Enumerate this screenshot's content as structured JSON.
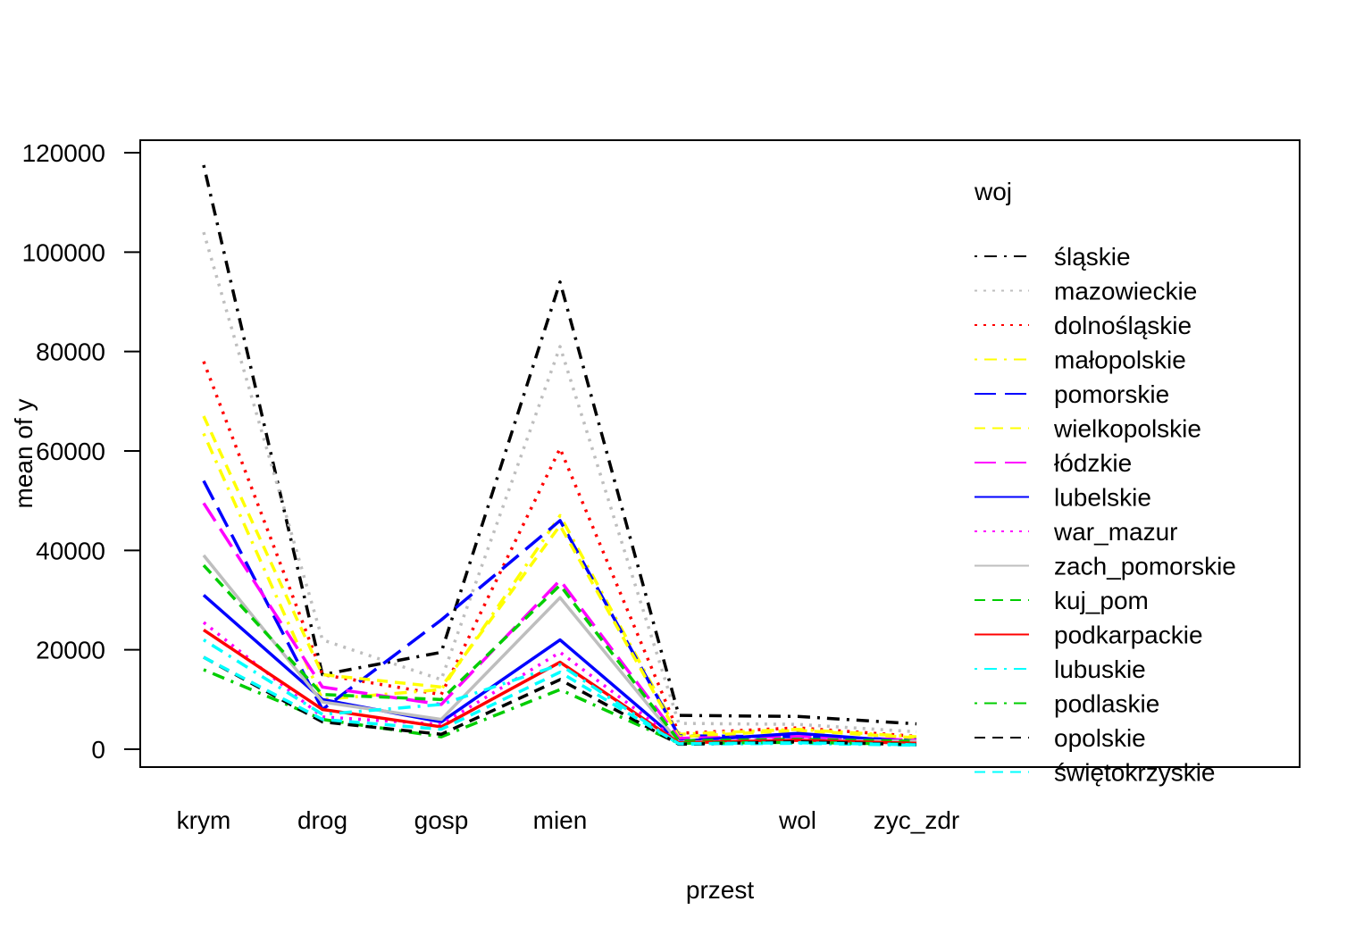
{
  "chart_data": {
    "type": "line",
    "xlabel": "przest",
    "ylabel": "mean of  y",
    "x_categories": [
      "krym",
      "drog",
      "gosp",
      "mien",
      "",
      "wol",
      "zyc_zdr"
    ],
    "x_ticks_shown": [
      "krym",
      "drog",
      "gosp",
      "mien",
      "wol",
      "zyc_zdr"
    ],
    "y_ticks": [
      0,
      20000,
      40000,
      60000,
      80000,
      100000,
      120000
    ],
    "ylim": [
      -3500,
      122500
    ],
    "legend_title": "woj",
    "legend_position": "right",
    "series": [
      {
        "name": "śląskie",
        "color": "#000000",
        "dash": "dotdash",
        "values": [
          117500,
          15000,
          19500,
          94000,
          6800,
          6600,
          5100
        ]
      },
      {
        "name": "mazowieckie",
        "color": "#bebebe",
        "dash": "dotted",
        "values": [
          104000,
          22000,
          14000,
          81000,
          5200,
          5000,
          3500
        ]
      },
      {
        "name": "dolnośląskie",
        "color": "#ff0000",
        "dash": "dotted",
        "values": [
          78000,
          15000,
          11000,
          60500,
          3200,
          4300,
          2600
        ]
      },
      {
        "name": "małopolskie",
        "color": "#ffff00",
        "dash": "dotdash",
        "values": [
          63500,
          10000,
          12000,
          47000,
          3000,
          4000,
          2500
        ]
      },
      {
        "name": "pomorskie",
        "color": "#0000ff",
        "dash": "longdash",
        "values": [
          54000,
          8000,
          26000,
          46000,
          2700,
          2500,
          1900
        ]
      },
      {
        "name": "wielkopolskie",
        "color": "#ffff00",
        "dash": "dashed",
        "values": [
          67000,
          15000,
          12500,
          45000,
          2500,
          3800,
          2300
        ]
      },
      {
        "name": "łódzkie",
        "color": "#ff00ff",
        "dash": "longdash",
        "values": [
          49500,
          12500,
          9000,
          34000,
          2200,
          2600,
          1800
        ]
      },
      {
        "name": "lubelskie",
        "color": "#0000ff",
        "dash": "solid",
        "values": [
          31000,
          10000,
          5500,
          22000,
          1600,
          3200,
          1400
        ]
      },
      {
        "name": "war_mazur",
        "color": "#ff00ff",
        "dash": "dotted",
        "values": [
          25500,
          6500,
          5000,
          19500,
          1500,
          2000,
          1300
        ]
      },
      {
        "name": "zach_pomorskie",
        "color": "#bebebe",
        "dash": "solid",
        "values": [
          39000,
          9500,
          6000,
          30500,
          1400,
          1800,
          1600
        ]
      },
      {
        "name": "kuj_pom",
        "color": "#00cd00",
        "dash": "dashed",
        "values": [
          37000,
          11000,
          10000,
          33000,
          1700,
          2000,
          1600
        ]
      },
      {
        "name": "podkarpackie",
        "color": "#ff0000",
        "dash": "solid",
        "values": [
          24000,
          8000,
          4500,
          17500,
          1300,
          1800,
          1200
        ]
      },
      {
        "name": "lubuskie",
        "color": "#00ffff",
        "dash": "dotdash",
        "values": [
          22000,
          7000,
          9000,
          17000,
          1000,
          1200,
          800
        ]
      },
      {
        "name": "podlaskie",
        "color": "#00cd00",
        "dash": "dotdash",
        "values": [
          16000,
          6000,
          2500,
          12000,
          1200,
          1400,
          1000
        ]
      },
      {
        "name": "opolskie",
        "color": "#000000",
        "dash": "dashed",
        "values": [
          18500,
          5500,
          3000,
          14000,
          1000,
          1500,
          900
        ]
      },
      {
        "name": "świętokrzyskie",
        "color": "#00ffff",
        "dash": "dashed",
        "values": [
          18500,
          6000,
          4000,
          15500,
          1100,
          1300,
          900
        ]
      }
    ]
  }
}
